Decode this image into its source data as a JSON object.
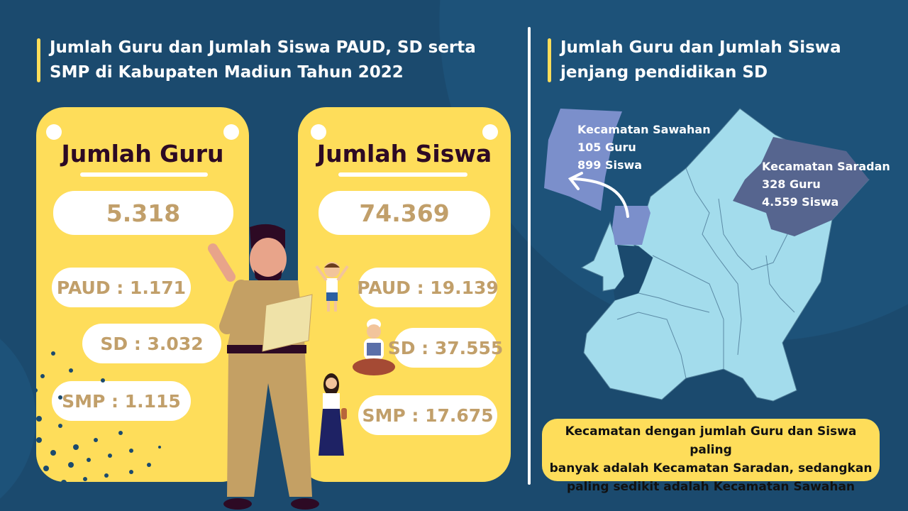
{
  "left": {
    "title_line1": "Jumlah Guru dan Jumlah Siswa PAUD, SD serta",
    "title_line2": "SMP di Kabupaten Madiun Tahun 2022"
  },
  "guru": {
    "title": "Jumlah Guru",
    "total": "5.318",
    "paud": "PAUD : 1.171",
    "sd": "SD : 3.032",
    "smp": "SMP : 1.115"
  },
  "siswa": {
    "title": "Jumlah Siswa",
    "total": "74.369",
    "paud": "PAUD : 19.139",
    "sd": "SD : 37.555",
    "smp": "SMP : 17.675"
  },
  "right": {
    "title_line1": "Jumlah Guru dan Jumlah Siswa",
    "title_line2": "jenjang pendidikan SD"
  },
  "map": {
    "sawahan": {
      "name": "Kecamatan Sawahan",
      "guru": "105 Guru",
      "siswa": "899 Siswa",
      "color": "#7b8fcb"
    },
    "saradan": {
      "name": "Kecamatan Saradan",
      "guru": "328 Guru",
      "siswa": "4.559 Siswa",
      "color": "#56658f"
    },
    "base_color": "#a3dcec"
  },
  "note": {
    "line1": "Kecamatan dengan jumlah Guru dan Siswa paling",
    "line2": "banyak adalah Kecamatan Saradan, sedangkan",
    "line3": "paling sedikit adalah Kecamatan Sawahan"
  },
  "colors": {
    "background": "#1b4a6e",
    "accent": "#fedd5a",
    "value_text": "#c19f6a"
  }
}
